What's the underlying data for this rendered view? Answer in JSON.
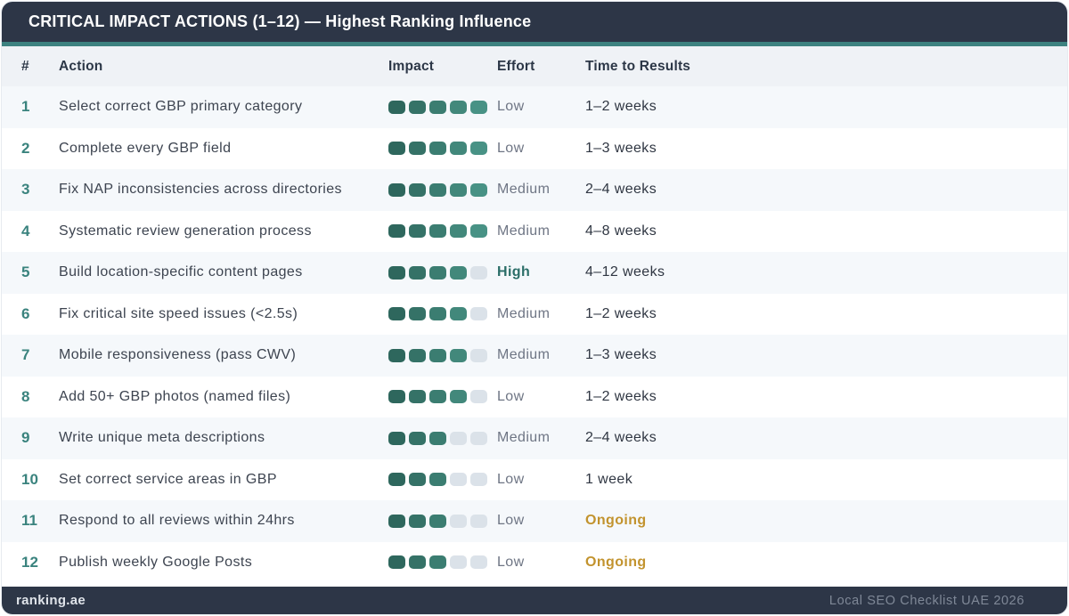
{
  "header": {
    "title": "CRITICAL IMPACT ACTIONS (1–12) — Highest Ranking Influence"
  },
  "footer": {
    "left": "ranking.ae",
    "right": "Local SEO Checklist UAE 2026"
  },
  "colors": {
    "navy": "#2d3647",
    "teal_accent": "#3d8280",
    "number_teal": "#3a837e",
    "effort_high_teal": "#2b6e68",
    "ongoing_gold": "#c2932e",
    "header_row_bg": "#eff2f6",
    "row_alt_bg": "#f5f8fb",
    "impact_fill_colors": [
      "#2e675d",
      "#357267",
      "#3b7d71",
      "#42887b",
      "#489285"
    ],
    "impact_empty_color": "#dbe2e9"
  },
  "chart_data": {
    "type": "table",
    "title": "CRITICAL IMPACT ACTIONS (1–12) — Highest Ranking Influence",
    "columns": [
      "#",
      "Action",
      "Impact",
      "Effort",
      "Time to Results"
    ],
    "impact_scale_max": 5,
    "rows": [
      {
        "num": "1",
        "action": "Select correct GBP primary category",
        "impact": 5,
        "effort": "Low",
        "effort_highlight": false,
        "time": "1–2 weeks",
        "time_highlight": false
      },
      {
        "num": "2",
        "action": "Complete every GBP field",
        "impact": 5,
        "effort": "Low",
        "effort_highlight": false,
        "time": "1–3 weeks",
        "time_highlight": false
      },
      {
        "num": "3",
        "action": "Fix NAP inconsistencies across directories",
        "impact": 5,
        "effort": "Medium",
        "effort_highlight": false,
        "time": "2–4 weeks",
        "time_highlight": false
      },
      {
        "num": "4",
        "action": "Systematic review generation process",
        "impact": 5,
        "effort": "Medium",
        "effort_highlight": false,
        "time": "4–8 weeks",
        "time_highlight": false
      },
      {
        "num": "5",
        "action": "Build location-specific content pages",
        "impact": 4,
        "effort": "High",
        "effort_highlight": true,
        "time": "4–12 weeks",
        "time_highlight": false
      },
      {
        "num": "6",
        "action": "Fix critical site speed issues (<2.5s)",
        "impact": 4,
        "effort": "Medium",
        "effort_highlight": false,
        "time": "1–2 weeks",
        "time_highlight": false
      },
      {
        "num": "7",
        "action": "Mobile responsiveness (pass CWV)",
        "impact": 4,
        "effort": "Medium",
        "effort_highlight": false,
        "time": "1–3 weeks",
        "time_highlight": false
      },
      {
        "num": "8",
        "action": "Add 50+ GBP photos (named files)",
        "impact": 4,
        "effort": "Low",
        "effort_highlight": false,
        "time": "1–2 weeks",
        "time_highlight": false
      },
      {
        "num": "9",
        "action": "Write unique meta descriptions",
        "impact": 3,
        "effort": "Medium",
        "effort_highlight": false,
        "time": "2–4 weeks",
        "time_highlight": false
      },
      {
        "num": "10",
        "action": "Set correct service areas in GBP",
        "impact": 3,
        "effort": "Low",
        "effort_highlight": false,
        "time": "1 week",
        "time_highlight": false
      },
      {
        "num": "11",
        "action": "Respond to all reviews within 24hrs",
        "impact": 3,
        "effort": "Low",
        "effort_highlight": false,
        "time": "Ongoing",
        "time_highlight": true
      },
      {
        "num": "12",
        "action": "Publish weekly Google Posts",
        "impact": 3,
        "effort": "Low",
        "effort_highlight": false,
        "time": "Ongoing",
        "time_highlight": true
      }
    ]
  }
}
